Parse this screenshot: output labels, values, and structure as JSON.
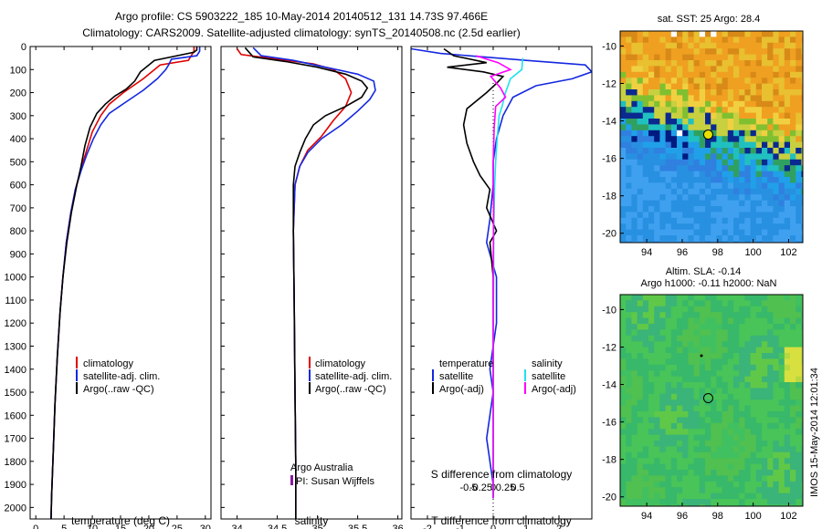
{
  "header": {
    "title_line1": "Argo profile: CS 5903222_185 10-May-2014 20140512_131 14.73S 97.466E",
    "title_line2": "Climatology: CARS2009. Satellite-adjusted climatology: synTS_20140508.nc (2.5d earlier)"
  },
  "colors": {
    "climatology": "#e00000",
    "satellite": "#1428e0",
    "argo": "#000000",
    "satellite_sal": "#22e0f0",
    "argo_sal": "#ff00ff"
  },
  "chart_data": [
    {
      "type": "line",
      "id": "temperature",
      "xlabel": "temperature (deg C)",
      "ylabel": "",
      "xlim": [
        -1,
        31
      ],
      "ylim": [
        2050,
        0
      ],
      "x_ticks": [
        "0",
        "5",
        "10",
        "15",
        "20",
        "25",
        "30"
      ],
      "y_ticks": [
        "0",
        "100",
        "200",
        "300",
        "400",
        "500",
        "600",
        "700",
        "800",
        "900",
        "1000",
        "1100",
        "1200",
        "1300",
        "1400",
        "1500",
        "1600",
        "1700",
        "1800",
        "1900",
        "2000"
      ],
      "legend": [
        "climatology",
        "satellite-adj. clim.",
        "Argo(..raw -QC)"
      ],
      "series": [
        {
          "name": "climatology",
          "color": "#e00000",
          "points": [
            [
              28,
              0
            ],
            [
              28,
              20
            ],
            [
              27,
              60
            ],
            [
              22,
              80
            ],
            [
              19,
              140
            ],
            [
              15.5,
              200
            ],
            [
              13,
              250
            ],
            [
              11.5,
              300
            ],
            [
              10,
              370
            ],
            [
              9,
              450
            ],
            [
              8,
              530
            ],
            [
              7,
              620
            ],
            [
              6.2,
              720
            ],
            [
              5.4,
              850
            ],
            [
              4.8,
              1000
            ],
            [
              4.3,
              1150
            ],
            [
              3.8,
              1350
            ],
            [
              3.4,
              1550
            ],
            [
              3.1,
              1750
            ],
            [
              2.8,
              1950
            ],
            [
              2.7,
              2050
            ]
          ]
        },
        {
          "name": "satellite-adj. clim.",
          "color": "#1428e0",
          "points": [
            [
              29,
              0
            ],
            [
              29,
              20
            ],
            [
              28.5,
              40
            ],
            [
              24,
              55
            ],
            [
              23.5,
              80
            ],
            [
              23,
              100
            ],
            [
              21.5,
              140
            ],
            [
              19,
              190
            ],
            [
              16,
              240
            ],
            [
              13,
              290
            ],
            [
              11.5,
              340
            ],
            [
              10.2,
              400
            ],
            [
              9,
              470
            ],
            [
              8,
              540
            ],
            [
              7,
              620
            ],
            [
              6.2,
              720
            ],
            [
              5.4,
              850
            ],
            [
              4.8,
              1000
            ],
            [
              4.3,
              1150
            ],
            [
              3.8,
              1350
            ],
            [
              3.4,
              1550
            ],
            [
              3.1,
              1750
            ],
            [
              2.8,
              1950
            ],
            [
              2.7,
              2050
            ]
          ]
        },
        {
          "name": "Argo(..raw -QC)",
          "color": "#000000",
          "points": [
            [
              28.5,
              0
            ],
            [
              28.5,
              15
            ],
            [
              28,
              25
            ],
            [
              21,
              60
            ],
            [
              18.5,
              110
            ],
            [
              17.5,
              150
            ],
            [
              16,
              185
            ],
            [
              14,
              215
            ],
            [
              12.3,
              250
            ],
            [
              10.8,
              290
            ],
            [
              9.6,
              350
            ],
            [
              8.7,
              430
            ],
            [
              8,
              520
            ],
            [
              7.2,
              610
            ],
            [
              6.3,
              720
            ],
            [
              5.5,
              850
            ],
            [
              4.8,
              1000
            ],
            [
              4.3,
              1150
            ],
            [
              3.8,
              1350
            ],
            [
              3.4,
              1550
            ],
            [
              3.1,
              1750
            ],
            [
              2.8,
              1950
            ],
            [
              2.7,
              2050
            ]
          ]
        }
      ]
    },
    {
      "type": "line",
      "id": "salinity",
      "xlabel": "salinity",
      "xlim": [
        33.8,
        36.05
      ],
      "ylim": [
        2050,
        0
      ],
      "x_ticks": [
        "34",
        "34.5",
        "35",
        "35.5",
        "36"
      ],
      "legend": [
        "climatology",
        "satellite-adj. clim.",
        "Argo(..raw -QC)"
      ],
      "annotation_line1": "Argo Australia",
      "annotation_line2": "PI: Susan Wijffels",
      "series": [
        {
          "name": "climatology",
          "color": "#e00000",
          "points": [
            [
              34.0,
              10
            ],
            [
              34.05,
              35
            ],
            [
              34.5,
              55
            ],
            [
              34.95,
              75
            ],
            [
              35.2,
              100
            ],
            [
              35.35,
              140
            ],
            [
              35.42,
              200
            ],
            [
              35.35,
              260
            ],
            [
              35.2,
              320
            ],
            [
              35.05,
              390
            ],
            [
              34.88,
              450
            ],
            [
              34.78,
              520
            ],
            [
              34.72,
              600
            ],
            [
              34.7,
              800
            ],
            [
              34.71,
              1100
            ],
            [
              34.72,
              1500
            ],
            [
              34.73,
              1800
            ],
            [
              34.73,
              2050
            ]
          ]
        },
        {
          "name": "satellite-adj. clim.",
          "color": "#1428e0",
          "points": [
            [
              34.2,
              5
            ],
            [
              34.3,
              40
            ],
            [
              34.7,
              60
            ],
            [
              35.1,
              90
            ],
            [
              35.5,
              120
            ],
            [
              35.7,
              150
            ],
            [
              35.72,
              190
            ],
            [
              35.65,
              230
            ],
            [
              35.5,
              280
            ],
            [
              35.3,
              340
            ],
            [
              35.05,
              400
            ],
            [
              34.88,
              460
            ],
            [
              34.78,
              520
            ],
            [
              34.72,
              600
            ],
            [
              34.7,
              800
            ],
            [
              34.71,
              1100
            ],
            [
              34.72,
              1500
            ],
            [
              34.73,
              1800
            ],
            [
              34.73,
              2050
            ]
          ]
        },
        {
          "name": "Argo(..raw -QC)",
          "color": "#000000",
          "points": [
            [
              34.1,
              5
            ],
            [
              34.2,
              45
            ],
            [
              34.6,
              65
            ],
            [
              35.0,
              90
            ],
            [
              35.35,
              120
            ],
            [
              35.55,
              150
            ],
            [
              35.62,
              180
            ],
            [
              35.55,
              220
            ],
            [
              35.35,
              260
            ],
            [
              35.1,
              300
            ],
            [
              34.95,
              340
            ],
            [
              34.85,
              400
            ],
            [
              34.78,
              460
            ],
            [
              34.72,
              520
            ],
            [
              34.7,
              600
            ],
            [
              34.7,
              800
            ],
            [
              34.71,
              1100
            ],
            [
              34.72,
              1500
            ],
            [
              34.73,
              1800
            ],
            [
              34.73,
              2050
            ]
          ]
        }
      ]
    },
    {
      "type": "line",
      "id": "differences",
      "xlabel": "T difference from climatology",
      "x2label": "S difference from climatology",
      "xlim": [
        -2.5,
        3
      ],
      "ylim": [
        2050,
        0
      ],
      "x_ticks": [
        "-2",
        "-1",
        "0",
        "1",
        "2"
      ],
      "x2_ticks": [
        "-0.5",
        "-0.25",
        "0",
        "0.25",
        "0.5"
      ],
      "legend_temperature_title": "temperature",
      "legend_salinity_title": "salinity",
      "legend_temperature": [
        "satellite",
        "Argo(-adj)"
      ],
      "legend_salinity": [
        "satellite",
        "Argo(-adj)"
      ],
      "series": [
        {
          "name": "T satellite",
          "color": "#1428e0",
          "points": [
            [
              -2.5,
              10
            ],
            [
              -1.6,
              30
            ],
            [
              1,
              60
            ],
            [
              2.8,
              80
            ],
            [
              3,
              110
            ],
            [
              2.4,
              140
            ],
            [
              1.3,
              170
            ],
            [
              0.6,
              220
            ],
            [
              0.3,
              300
            ],
            [
              0.1,
              400
            ],
            [
              0,
              500
            ],
            [
              0,
              600
            ],
            [
              -0.1,
              750
            ],
            [
              -0.2,
              850
            ],
            [
              0.1,
              1000
            ],
            [
              0.1,
              1200
            ],
            [
              -0.1,
              1400
            ],
            [
              0,
              1500
            ],
            [
              -0.2,
              1700
            ],
            [
              -0.1,
              1800
            ],
            [
              0,
              1900
            ],
            [
              0,
              1960
            ]
          ]
        },
        {
          "name": "T Argo(-adj)",
          "color": "#000000",
          "points": [
            [
              -1.5,
              10
            ],
            [
              -1.2,
              40
            ],
            [
              -0.2,
              70
            ],
            [
              -1.4,
              90
            ],
            [
              -0.3,
              110
            ],
            [
              0.3,
              130
            ],
            [
              0.1,
              160
            ],
            [
              -0.2,
              200
            ],
            [
              -0.8,
              270
            ],
            [
              -0.9,
              340
            ],
            [
              -0.8,
              420
            ],
            [
              -0.6,
              500
            ],
            [
              -0.4,
              560
            ],
            [
              -0.1,
              620
            ],
            [
              -0.2,
              700
            ],
            [
              0.1,
              800
            ],
            [
              -0.1,
              850
            ],
            [
              0,
              1000
            ],
            [
              0,
              1200
            ],
            [
              0,
              1500
            ],
            [
              0,
              1800
            ],
            [
              0,
              1960
            ]
          ]
        },
        {
          "name": "S satellite",
          "color": "#22e0f0",
          "points": [
            [
              0.6,
              50
            ],
            [
              0.58,
              100
            ],
            [
              0.35,
              140
            ],
            [
              0.25,
              200
            ],
            [
              0.18,
              260
            ],
            [
              0.12,
              300
            ],
            [
              0.08,
              400
            ],
            [
              0.05,
              500
            ],
            [
              0.03,
              600
            ],
            [
              0.01,
              800
            ],
            [
              0.01,
              1000
            ],
            [
              0,
              1200
            ],
            [
              0,
              1500
            ],
            [
              0,
              1800
            ],
            [
              0,
              1960
            ]
          ]
        },
        {
          "name": "S Argo(-adj)",
          "color": "#ff00ff",
          "points": [
            [
              -0.35,
              40
            ],
            [
              0.1,
              70
            ],
            [
              0.35,
              100
            ],
            [
              -0.05,
              130
            ],
            [
              0.15,
              180
            ],
            [
              0.25,
              220
            ],
            [
              0.05,
              260
            ],
            [
              0.02,
              350
            ],
            [
              0,
              500
            ],
            [
              0.01,
              700
            ],
            [
              0,
              1000
            ],
            [
              0,
              1300
            ],
            [
              0,
              1600
            ],
            [
              0,
              1960
            ]
          ]
        }
      ]
    },
    {
      "type": "heatmap",
      "id": "sst_map",
      "title": "sat. SST: 25 Argo: 28.4",
      "xlim": [
        92.5,
        102.8
      ],
      "ylim": [
        -20.5,
        -9.2
      ],
      "x_ticks": [
        "94",
        "96",
        "98",
        "100",
        "102"
      ],
      "y_ticks": [
        "-10",
        "-12",
        "-14",
        "-16",
        "-18",
        "-20"
      ],
      "argo_lon": 97.466,
      "argo_lat": -14.73
    },
    {
      "type": "heatmap",
      "id": "sla_map",
      "title_line1": "Altim. SLA: -0.14",
      "title_line2": "Argo h1000: -0.11 h2000: NaN",
      "xlim": [
        92.5,
        102.8
      ],
      "ylim": [
        -20.5,
        -9.2
      ],
      "x_ticks": [
        "94",
        "96",
        "98",
        "100",
        "102"
      ],
      "y_ticks": [
        "-10",
        "-12",
        "-14",
        "-16",
        "-18",
        "-20"
      ],
      "argo_lon": 97.466,
      "argo_lat": -14.73
    }
  ],
  "footer": {
    "timestamp": "IMOS 15-May-2014 12:01:34"
  }
}
